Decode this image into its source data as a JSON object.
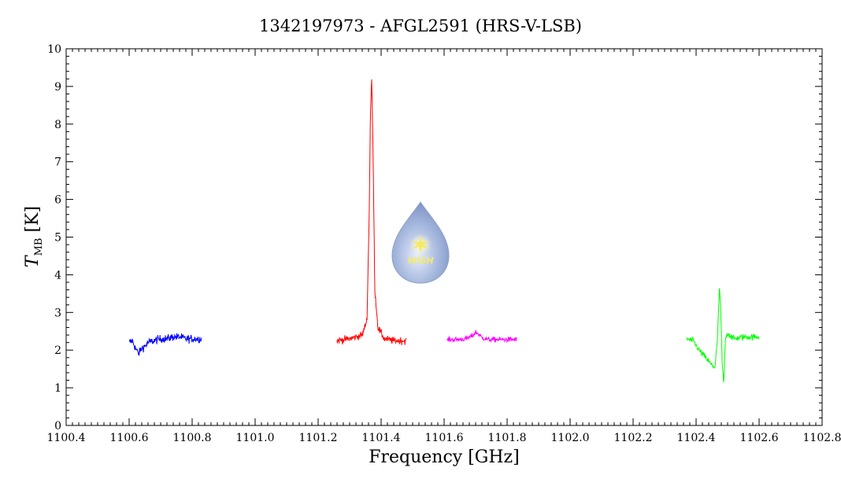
{
  "chart_data": {
    "type": "line",
    "title": "1342197973 - AFGL2591 (HRS-V-LSB)",
    "xlabel": "Frequency [GHz]",
    "ylabel": {
      "symbol": "T",
      "subscript": "MB",
      "unit": "[K]"
    },
    "xlim": [
      1100.4,
      1102.8
    ],
    "ylim": [
      0,
      10
    ],
    "x_ticks": [
      1100.4,
      1100.6,
      1100.8,
      1101.0,
      1101.2,
      1101.4,
      1101.6,
      1101.8,
      1102.0,
      1102.2,
      1102.4,
      1102.6,
      1102.8
    ],
    "x_tick_labels": [
      "1100.4",
      "1100.6",
      "1100.8",
      "1101.0",
      "1101.2",
      "1101.4",
      "1101.6",
      "1101.8",
      "1102.0",
      "1102.2",
      "1102.4",
      "1102.6",
      "1102.8"
    ],
    "y_ticks": [
      0,
      1,
      2,
      3,
      4,
      5,
      6,
      7,
      8,
      9,
      10
    ],
    "y_tick_labels": [
      "0",
      "1",
      "2",
      "3",
      "4",
      "5",
      "6",
      "7",
      "8",
      "9",
      "10"
    ],
    "grid": false,
    "logo": {
      "text": "WISH",
      "colors": {
        "drop": "#9fb2d6",
        "star": "#f5e96a"
      }
    },
    "series": [
      {
        "color": "#0000ff",
        "x": [
          1100.6,
          1100.61,
          1100.62,
          1100.63,
          1100.64,
          1100.65,
          1100.66,
          1100.68,
          1100.7,
          1100.72,
          1100.74,
          1100.76,
          1100.78,
          1100.8,
          1100.83
        ],
        "y": [
          2.2,
          2.25,
          2.05,
          1.9,
          2.05,
          2.1,
          2.2,
          2.25,
          2.3,
          2.3,
          2.35,
          2.35,
          2.3,
          2.3,
          2.3
        ],
        "noise": 0.09
      },
      {
        "color": "#ff0000",
        "x": [
          1101.26,
          1101.3,
          1101.34,
          1101.355,
          1101.362,
          1101.366,
          1101.37,
          1101.374,
          1101.38,
          1101.39,
          1101.41,
          1101.44,
          1101.48
        ],
        "y": [
          2.25,
          2.3,
          2.4,
          2.8,
          5.5,
          8.3,
          9.2,
          7.5,
          3.6,
          2.6,
          2.3,
          2.25,
          2.25
        ],
        "noise": 0.08
      },
      {
        "color": "#ff00ff",
        "x": [
          1101.61,
          1101.64,
          1101.67,
          1101.69,
          1101.7,
          1101.71,
          1101.72,
          1101.74,
          1101.77,
          1101.8,
          1101.83
        ],
        "y": [
          2.28,
          2.28,
          2.3,
          2.38,
          2.48,
          2.42,
          2.33,
          2.28,
          2.28,
          2.28,
          2.28
        ],
        "noise": 0.06
      },
      {
        "color": "#00ff00",
        "x": [
          1102.37,
          1102.39,
          1102.41,
          1102.43,
          1102.45,
          1102.46,
          1102.468,
          1102.474,
          1102.478,
          1102.483,
          1102.488,
          1102.493,
          1102.5,
          1102.52,
          1102.55,
          1102.6
        ],
        "y": [
          2.3,
          2.25,
          2.0,
          1.8,
          1.6,
          1.55,
          2.3,
          3.7,
          3.1,
          1.6,
          1.1,
          2.3,
          2.45,
          2.3,
          2.35,
          2.35
        ],
        "noise": 0.07
      }
    ]
  }
}
